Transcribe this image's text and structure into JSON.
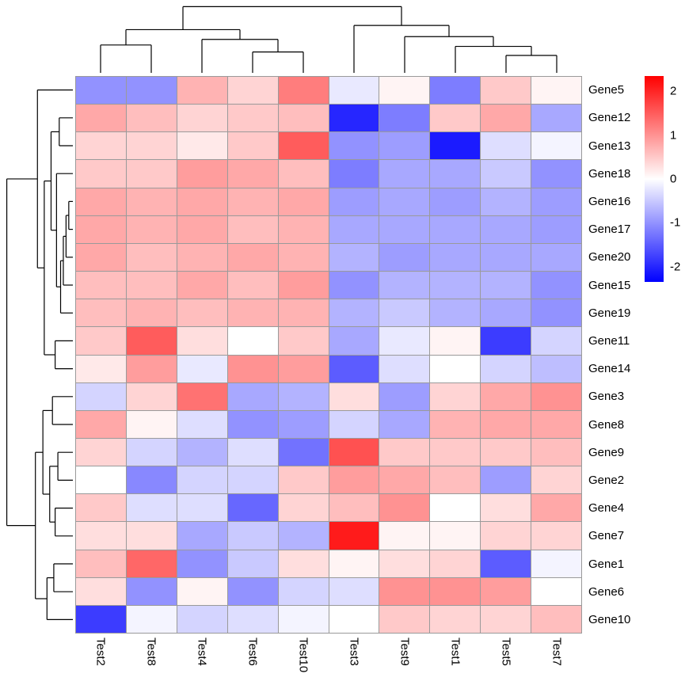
{
  "chart_data": {
    "type": "heatmap",
    "title": "",
    "columns": [
      "Test2",
      "Test8",
      "Test4",
      "Test6",
      "Test10",
      "Test3",
      "Test9",
      "Test1",
      "Test5",
      "Test7"
    ],
    "rows": [
      "Gene5",
      "Gene12",
      "Gene13",
      "Gene18",
      "Gene16",
      "Gene17",
      "Gene20",
      "Gene15",
      "Gene19",
      "Gene11",
      "Gene14",
      "Gene3",
      "Gene8",
      "Gene9",
      "Gene2",
      "Gene4",
      "Gene7",
      "Gene1",
      "Gene6",
      "Gene10"
    ],
    "values": [
      [
        -1.0,
        -1.0,
        0.7,
        0.4,
        1.2,
        -0.2,
        0.1,
        -1.2,
        0.5,
        0.1
      ],
      [
        0.8,
        0.6,
        0.4,
        0.5,
        0.6,
        -2.0,
        -1.2,
        0.5,
        0.8,
        -0.8
      ],
      [
        0.4,
        0.4,
        0.2,
        0.5,
        1.5,
        -1.0,
        -0.9,
        -2.1,
        -0.3,
        -0.1
      ],
      [
        0.5,
        0.5,
        0.9,
        0.8,
        0.6,
        -1.2,
        -0.8,
        -0.8,
        -0.5,
        -1.0
      ],
      [
        0.8,
        0.7,
        0.8,
        0.7,
        0.8,
        -0.9,
        -0.8,
        -0.9,
        -0.7,
        -0.9
      ],
      [
        0.8,
        0.7,
        0.8,
        0.6,
        0.7,
        -0.8,
        -0.8,
        -0.8,
        -0.8,
        -0.9
      ],
      [
        0.8,
        0.6,
        0.7,
        0.8,
        0.7,
        -0.7,
        -0.9,
        -0.8,
        -0.8,
        -0.8
      ],
      [
        0.6,
        0.6,
        0.8,
        0.6,
        0.9,
        -1.0,
        -0.7,
        -0.7,
        -0.7,
        -1.0
      ],
      [
        0.6,
        0.7,
        0.6,
        0.7,
        0.7,
        -0.7,
        -0.5,
        -0.7,
        -0.8,
        -1.0
      ],
      [
        0.5,
        1.5,
        0.3,
        0.0,
        0.5,
        -0.8,
        -0.2,
        0.1,
        -1.8,
        -0.4
      ],
      [
        0.2,
        0.9,
        -0.2,
        1.0,
        0.9,
        -1.5,
        -0.3,
        0.0,
        -0.4,
        -0.6
      ],
      [
        -0.4,
        0.4,
        1.3,
        -0.8,
        -0.7,
        0.3,
        -0.9,
        0.4,
        0.8,
        1.0
      ],
      [
        0.8,
        0.1,
        -0.3,
        -1.0,
        -0.9,
        -0.4,
        -0.8,
        0.7,
        0.8,
        0.8
      ],
      [
        0.4,
        -0.4,
        -0.7,
        -0.3,
        -1.3,
        1.6,
        0.5,
        0.5,
        0.5,
        0.6
      ],
      [
        0.0,
        -1.1,
        -0.4,
        -0.4,
        0.5,
        0.9,
        0.8,
        0.6,
        -0.9,
        0.4
      ],
      [
        0.5,
        -0.3,
        -0.3,
        -1.4,
        0.4,
        0.6,
        1.0,
        0.0,
        0.3,
        0.8
      ],
      [
        0.3,
        0.3,
        -0.8,
        -0.5,
        -0.7,
        2.1,
        0.1,
        0.1,
        0.4,
        0.4
      ],
      [
        0.6,
        1.4,
        -1.0,
        -0.5,
        0.3,
        0.1,
        0.3,
        0.4,
        -1.5,
        -0.1
      ],
      [
        0.3,
        -1.0,
        0.1,
        -1.0,
        -0.4,
        -0.3,
        1.0,
        1.0,
        0.9,
        0.0
      ],
      [
        -1.8,
        -0.1,
        -0.4,
        -0.3,
        -0.1,
        0.0,
        0.5,
        0.4,
        0.4,
        0.6
      ]
    ],
    "color_scale": {
      "min": -2.35,
      "max": 2.35,
      "low": "#0000FF",
      "mid": "#FFFFFF",
      "high": "#FF0000"
    },
    "legend_ticks": [
      2,
      1,
      0,
      -1,
      -2
    ],
    "grid_color": "#9a9a9a",
    "col_dendrogram_segments": [
      [
        0.05,
        0,
        0.05,
        0.4
      ],
      [
        0.15,
        0,
        0.15,
        0.4
      ],
      [
        0.05,
        0.4,
        0.15,
        0.4
      ],
      [
        0.35,
        0,
        0.35,
        0.3
      ],
      [
        0.45,
        0,
        0.45,
        0.3
      ],
      [
        0.35,
        0.3,
        0.45,
        0.3
      ],
      [
        0.25,
        0,
        0.25,
        0.48
      ],
      [
        0.4,
        0.3,
        0.4,
        0.48
      ],
      [
        0.25,
        0.48,
        0.4,
        0.48
      ],
      [
        0.1,
        0.4,
        0.1,
        0.62
      ],
      [
        0.325,
        0.48,
        0.325,
        0.62
      ],
      [
        0.1,
        0.62,
        0.325,
        0.62
      ],
      [
        0.85,
        0,
        0.85,
        0.25
      ],
      [
        0.95,
        0,
        0.95,
        0.25
      ],
      [
        0.85,
        0.25,
        0.95,
        0.25
      ],
      [
        0.75,
        0,
        0.75,
        0.38
      ],
      [
        0.9,
        0.25,
        0.9,
        0.38
      ],
      [
        0.75,
        0.38,
        0.9,
        0.38
      ],
      [
        0.65,
        0,
        0.65,
        0.52
      ],
      [
        0.825,
        0.38,
        0.825,
        0.52
      ],
      [
        0.65,
        0.52,
        0.825,
        0.52
      ],
      [
        0.55,
        0,
        0.55,
        0.68
      ],
      [
        0.7375,
        0.52,
        0.7375,
        0.68
      ],
      [
        0.55,
        0.68,
        0.7375,
        0.68
      ],
      [
        0.2125,
        0.62,
        0.2125,
        0.95
      ],
      [
        0.64375,
        0.68,
        0.64375,
        0.95
      ],
      [
        0.2125,
        0.95,
        0.64375,
        0.95
      ]
    ],
    "row_dendrogram_segments": [
      [
        0,
        0.225,
        0.06,
        0.225
      ],
      [
        0,
        0.275,
        0.06,
        0.275
      ],
      [
        0.06,
        0.225,
        0.06,
        0.275
      ],
      [
        0.06,
        0.25,
        0.1,
        0.25
      ],
      [
        0,
        0.325,
        0.1,
        0.325
      ],
      [
        0.1,
        0.25,
        0.1,
        0.325
      ],
      [
        0.1,
        0.2875,
        0.14,
        0.2875
      ],
      [
        0,
        0.375,
        0.14,
        0.375
      ],
      [
        0.14,
        0.2875,
        0.14,
        0.375
      ],
      [
        0.14,
        0.33125,
        0.18,
        0.33125
      ],
      [
        0,
        0.425,
        0.18,
        0.425
      ],
      [
        0.18,
        0.33125,
        0.18,
        0.425
      ],
      [
        0,
        0.175,
        0.24,
        0.175
      ],
      [
        0.18,
        0.378125,
        0.24,
        0.378125
      ],
      [
        0.24,
        0.175,
        0.24,
        0.378125
      ],
      [
        0,
        0.075,
        0.2,
        0.075
      ],
      [
        0,
        0.125,
        0.2,
        0.125
      ],
      [
        0.2,
        0.075,
        0.2,
        0.125
      ],
      [
        0.2,
        0.1,
        0.32,
        0.1
      ],
      [
        0.24,
        0.2765625,
        0.32,
        0.2765625
      ],
      [
        0.32,
        0.1,
        0.32,
        0.2765625
      ],
      [
        0,
        0.475,
        0.26,
        0.475
      ],
      [
        0,
        0.525,
        0.26,
        0.525
      ],
      [
        0.26,
        0.475,
        0.26,
        0.525
      ],
      [
        0.32,
        0.1882813,
        0.42,
        0.1882813
      ],
      [
        0.26,
        0.5,
        0.42,
        0.5
      ],
      [
        0.42,
        0.1882813,
        0.42,
        0.5
      ],
      [
        0,
        0.025,
        0.52,
        0.025
      ],
      [
        0.42,
        0.3441406,
        0.52,
        0.3441406
      ],
      [
        0.52,
        0.025,
        0.52,
        0.3441406
      ],
      [
        0,
        0.575,
        0.3,
        0.575
      ],
      [
        0,
        0.625,
        0.3,
        0.625
      ],
      [
        0.3,
        0.575,
        0.3,
        0.625
      ],
      [
        0,
        0.675,
        0.22,
        0.675
      ],
      [
        0,
        0.725,
        0.22,
        0.725
      ],
      [
        0.22,
        0.675,
        0.22,
        0.725
      ],
      [
        0,
        0.775,
        0.26,
        0.775
      ],
      [
        0,
        0.825,
        0.26,
        0.825
      ],
      [
        0.26,
        0.775,
        0.26,
        0.825
      ],
      [
        0.22,
        0.7,
        0.34,
        0.7
      ],
      [
        0.26,
        0.8,
        0.34,
        0.8
      ],
      [
        0.34,
        0.7,
        0.34,
        0.8
      ],
      [
        0.3,
        0.6,
        0.44,
        0.6
      ],
      [
        0.34,
        0.75,
        0.44,
        0.75
      ],
      [
        0.44,
        0.6,
        0.44,
        0.75
      ],
      [
        0,
        0.875,
        0.28,
        0.875
      ],
      [
        0,
        0.925,
        0.28,
        0.925
      ],
      [
        0.28,
        0.875,
        0.28,
        0.925
      ],
      [
        0.28,
        0.9,
        0.38,
        0.9
      ],
      [
        0,
        0.975,
        0.38,
        0.975
      ],
      [
        0.38,
        0.9,
        0.38,
        0.975
      ],
      [
        0.44,
        0.675,
        0.55,
        0.675
      ],
      [
        0.38,
        0.9375,
        0.55,
        0.9375
      ],
      [
        0.55,
        0.675,
        0.55,
        0.9375
      ],
      [
        0.52,
        0.1845703,
        0.97,
        0.1845703
      ],
      [
        0.55,
        0.80625,
        0.97,
        0.80625
      ],
      [
        0.97,
        0.1845703,
        0.97,
        0.80625
      ]
    ]
  }
}
